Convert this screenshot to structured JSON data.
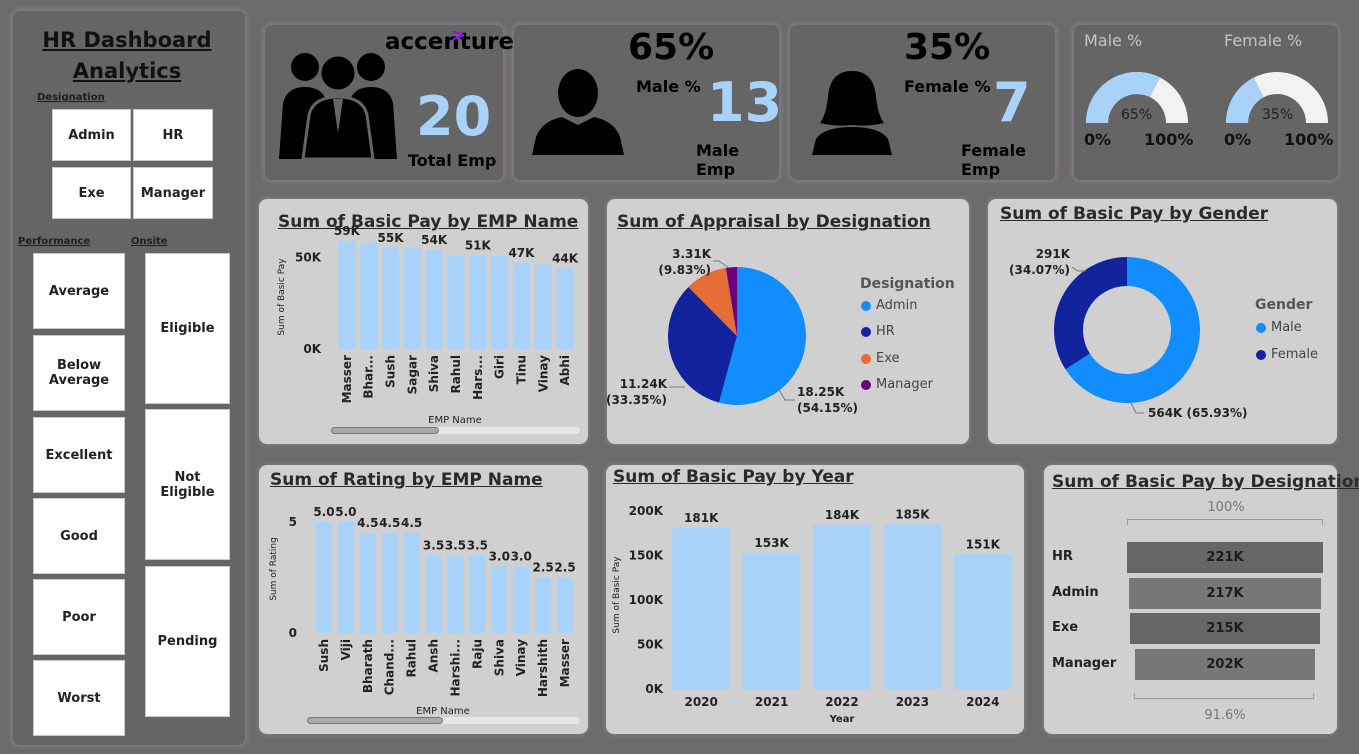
{
  "sidebar": {
    "title_line1": "HR Dashboard",
    "title_line2": "Analytics",
    "designation_label": "Designation",
    "designations": [
      "Admin",
      "HR",
      "Exe",
      "Manager"
    ],
    "performance_label": "Performance",
    "performance": [
      "Average",
      "Below Average",
      "Excellent",
      "Good",
      "Poor",
      "Worst"
    ],
    "onsite_label": "Onsite",
    "onsite": [
      "Eligible",
      "Not Eligible",
      "Pending"
    ]
  },
  "kpi_total": {
    "logo": "accenture",
    "value": "20",
    "label": "Total Emp"
  },
  "kpi_male": {
    "percent": "65%",
    "percent_label": "Male %",
    "value": "13",
    "label": "Male Emp"
  },
  "kpi_female": {
    "percent": "35%",
    "percent_label": "Female %",
    "value": "7",
    "label": "Female Emp"
  },
  "gauges": {
    "male": {
      "title": "Male %",
      "value": 65,
      "value_label": "65%",
      "min": "0%",
      "max": "100%"
    },
    "female": {
      "title": "Female %",
      "value": 35,
      "value_label": "35%",
      "min": "0%",
      "max": "100%"
    }
  },
  "colors": {
    "bar": "#a9d2fb",
    "admin": "#118dff",
    "hr": "#12239e",
    "exe": "#e66c37",
    "manager": "#6b007b",
    "funnel_dark": "#666666",
    "funnel_mid": "#777777"
  },
  "chart_data": [
    {
      "id": "basic_pay_by_emp",
      "type": "bar",
      "title": "Sum of Basic Pay by EMP Name",
      "xlabel": "EMP Name",
      "ylabel": "Sum of Basic Pay",
      "ticks": [
        "0K",
        "50K"
      ],
      "ylim": [
        0,
        60000
      ],
      "categories": [
        "Masser",
        "Bhar...",
        "Sush",
        "Sagar",
        "Shiva",
        "Rahul",
        "Hars...",
        "Giri",
        "Tinu",
        "Vinay",
        "Abhi"
      ],
      "values": [
        59000,
        58000,
        55000,
        55000,
        54000,
        51000,
        51000,
        51000,
        47000,
        46000,
        44000
      ],
      "data_labels": [
        "59K",
        "",
        "55K",
        "",
        "54K",
        "",
        "51K",
        "",
        "47K",
        "",
        "44K"
      ]
    },
    {
      "id": "appraisal_by_designation",
      "type": "pie",
      "title": "Sum of Appraisal by Designation",
      "legend_title": "Designation",
      "categories": [
        "Admin",
        "HR",
        "Exe",
        "Manager"
      ],
      "values": [
        18.25,
        11.24,
        3.31,
        0.87
      ],
      "labels": [
        [
          "18.25K",
          "(54.15%)"
        ],
        [
          "11.24K",
          "(33.35%)"
        ],
        [
          "3.31K",
          "(9.83%)"
        ],
        [
          "",
          ""
        ]
      ]
    },
    {
      "id": "basic_pay_by_gender",
      "type": "pie",
      "title": "Sum of Basic Pay by Gender",
      "legend_title": "Gender",
      "categories": [
        "Male",
        "Female"
      ],
      "values": [
        564,
        291
      ],
      "labels": [
        [
          "564K (65.93%)",
          ""
        ],
        [
          "291K",
          "(34.07%)"
        ]
      ]
    },
    {
      "id": "rating_by_emp",
      "type": "bar",
      "title": "Sum of Rating by EMP Name",
      "xlabel": "EMP Name",
      "ylabel": "Sum of Rating",
      "ticks": [
        "0",
        "5"
      ],
      "ylim": [
        0,
        5.5
      ],
      "categories": [
        "Sush",
        "Viji",
        "Bharath",
        "Chand...",
        "Rahul",
        "Ansh",
        "Harshi...",
        "Raju",
        "Shiva",
        "Vinay",
        "Harshith",
        "Masser"
      ],
      "values": [
        5.0,
        5.0,
        4.5,
        4.5,
        4.5,
        3.5,
        3.5,
        3.5,
        3.0,
        3.0,
        2.5,
        2.5
      ],
      "data_labels": [
        "5.0",
        "5.0",
        "4.5",
        "4.5",
        "4.5",
        "3.5",
        "3.5",
        "3.5",
        "3.0",
        "3.0",
        "2.5",
        "2.5"
      ]
    },
    {
      "id": "basic_pay_by_year",
      "type": "bar",
      "title": "Sum of Basic Pay by Year",
      "xlabel": "Year",
      "ylabel": "Sum of Basic Pay",
      "ticks": [
        "0K",
        "50K",
        "100K",
        "150K",
        "200K"
      ],
      "ylim": [
        0,
        200000
      ],
      "categories": [
        "2020",
        "2021",
        "2022",
        "2023",
        "2024"
      ],
      "values": [
        181000,
        153000,
        184000,
        185000,
        151000
      ],
      "data_labels": [
        "181K",
        "153K",
        "184K",
        "185K",
        "151K"
      ]
    },
    {
      "id": "basic_pay_by_designation",
      "type": "bar",
      "title": "Sum of Basic Pay by Designation",
      "top_label": "100%",
      "bottom_label": "91.6%",
      "categories": [
        "HR",
        "Admin",
        "Exe",
        "Manager"
      ],
      "values": [
        221000,
        217000,
        215000,
        202000
      ],
      "data_labels": [
        "221K",
        "217K",
        "215K",
        "202K"
      ]
    }
  ]
}
